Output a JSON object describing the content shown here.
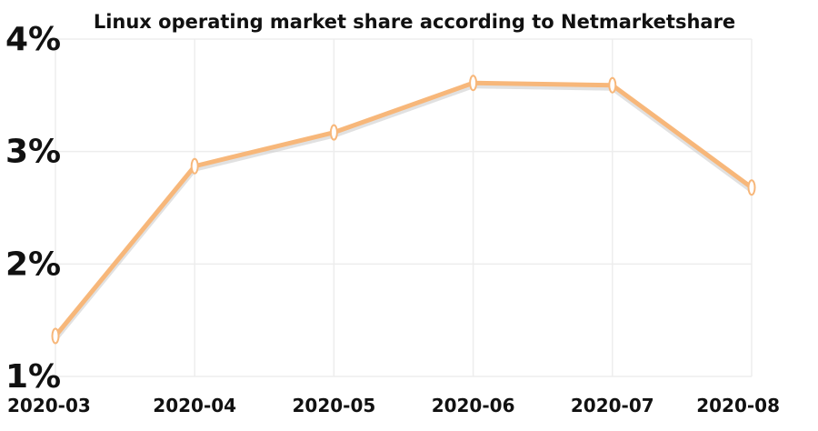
{
  "chart_data": {
    "type": "line",
    "title": "Linux operating market share according to Netmarketshare",
    "xlabel": "",
    "ylabel": "",
    "categories": [
      "2020-03",
      "2020-04",
      "2020-05",
      "2020-06",
      "2020-07",
      "2020-08"
    ],
    "series": [
      {
        "values": [
          1.36,
          2.87,
          3.17,
          3.61,
          3.59,
          2.68
        ]
      }
    ],
    "yticks": [
      1,
      2,
      3,
      4
    ],
    "ytick_labels": [
      "1%",
      "2%",
      "3%",
      "4%"
    ],
    "ylim": [
      1,
      4
    ],
    "grid": true,
    "legend": "none",
    "colors": {
      "line": "#F7B77A",
      "line_shadow": "#C9C9C9",
      "grid": "#EDEDED",
      "marker_fill": "#FFFFFF",
      "text": "#111111"
    }
  }
}
